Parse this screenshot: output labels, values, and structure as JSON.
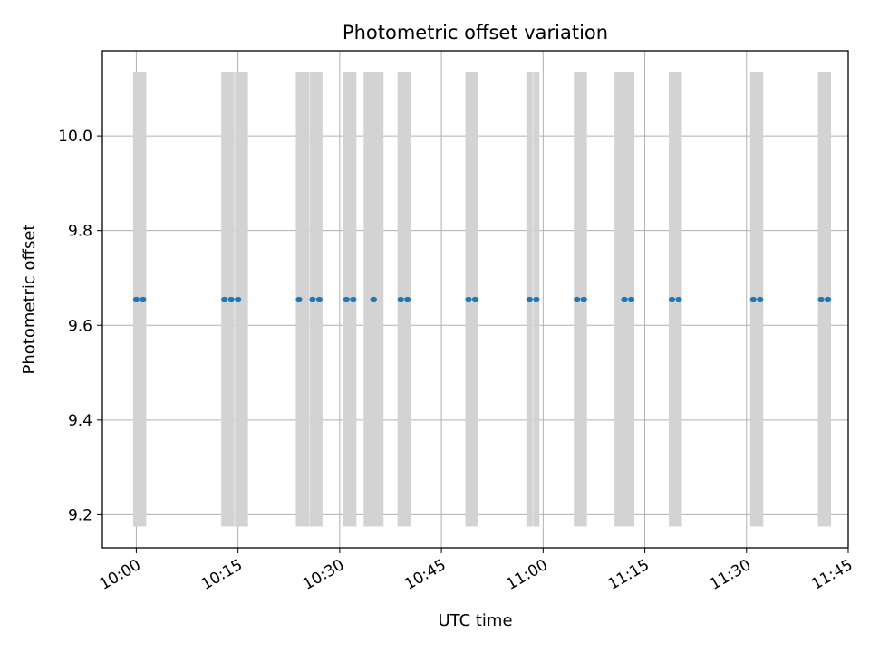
{
  "chart_data": {
    "type": "scatter",
    "title": "Photometric offset variation",
    "xlabel": "UTC time",
    "ylabel": "Photometric offset",
    "x_ticks": [
      "10:00",
      "10:15",
      "10:30",
      "10:45",
      "11:00",
      "11:15",
      "11:30",
      "11:45"
    ],
    "y_ticks": [
      "9.2",
      "9.4",
      "9.6",
      "9.8",
      "10.0"
    ],
    "y_tick_values": [
      9.2,
      9.4,
      9.6,
      9.8,
      10.0
    ],
    "xlim": [
      "09:55",
      "11:45"
    ],
    "ylim": [
      9.13,
      10.18
    ],
    "grid": true,
    "band_color": "#d3d3d3",
    "point_color": "#1f77b4",
    "band_range": [
      9.175,
      10.135
    ],
    "bands": [
      {
        "start": "10:00",
        "end": "10:01"
      },
      {
        "start": "10:13",
        "end": "10:14"
      },
      {
        "start": "10:15",
        "end": "10:16"
      },
      {
        "start": "10:24",
        "end": "10:25"
      },
      {
        "start": "10:26",
        "end": "10:27"
      },
      {
        "start": "10:31",
        "end": "10:32"
      },
      {
        "start": "10:34",
        "end": "10:36"
      },
      {
        "start": "10:39",
        "end": "10:40"
      },
      {
        "start": "10:49",
        "end": "10:50"
      },
      {
        "start": "10:58",
        "end": "10:58"
      },
      {
        "start": "10:59",
        "end": "10:59"
      },
      {
        "start": "11:05",
        "end": "11:06"
      },
      {
        "start": "11:11",
        "end": "11:13"
      },
      {
        "start": "11:19",
        "end": "11:20"
      },
      {
        "start": "11:31",
        "end": "11:32"
      },
      {
        "start": "11:41",
        "end": "11:42"
      }
    ],
    "points": [
      {
        "x": "10:00",
        "y": 9.655
      },
      {
        "x": "10:01",
        "y": 9.655
      },
      {
        "x": "10:13",
        "y": 9.655
      },
      {
        "x": "10:14",
        "y": 9.655
      },
      {
        "x": "10:15",
        "y": 9.655
      },
      {
        "x": "10:24",
        "y": 9.655
      },
      {
        "x": "10:26",
        "y": 9.655
      },
      {
        "x": "10:27",
        "y": 9.655
      },
      {
        "x": "10:31",
        "y": 9.655
      },
      {
        "x": "10:32",
        "y": 9.655
      },
      {
        "x": "10:35",
        "y": 9.655
      },
      {
        "x": "10:35",
        "y": 9.655
      },
      {
        "x": "10:39",
        "y": 9.655
      },
      {
        "x": "10:40",
        "y": 9.655
      },
      {
        "x": "10:49",
        "y": 9.655
      },
      {
        "x": "10:50",
        "y": 9.655
      },
      {
        "x": "10:58",
        "y": 9.655
      },
      {
        "x": "10:59",
        "y": 9.655
      },
      {
        "x": "11:05",
        "y": 9.655
      },
      {
        "x": "11:06",
        "y": 9.655
      },
      {
        "x": "11:06",
        "y": 9.655
      },
      {
        "x": "11:12",
        "y": 9.655
      },
      {
        "x": "11:12",
        "y": 9.655
      },
      {
        "x": "11:13",
        "y": 9.655
      },
      {
        "x": "11:19",
        "y": 9.655
      },
      {
        "x": "11:20",
        "y": 9.655
      },
      {
        "x": "11:31",
        "y": 9.655
      },
      {
        "x": "11:32",
        "y": 9.655
      },
      {
        "x": "11:41",
        "y": 9.655
      },
      {
        "x": "11:42",
        "y": 9.655
      }
    ]
  }
}
